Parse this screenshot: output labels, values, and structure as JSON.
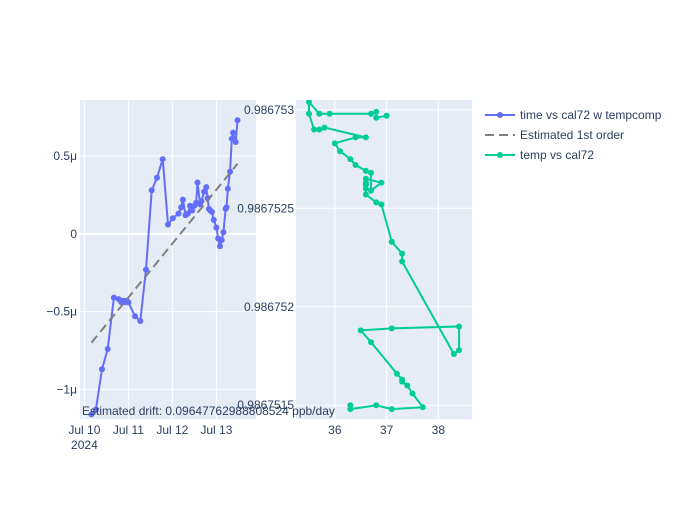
{
  "annotation": "Estimated drift:  0.09647762988808524 ppb/day",
  "colors": {
    "tempcomp": "#636efa",
    "fit": "#7f7f7f",
    "temp": "#00cc96",
    "plot_bg": "#e5ecf6",
    "grid": "#ffffff",
    "text": "#2a3f5f"
  },
  "legend": {
    "placement": "right",
    "items": [
      {
        "label": "time vs cal72 w tempcomp",
        "style": "line-marker",
        "color": "#636efa"
      },
      {
        "label": "Estimated 1st order",
        "style": "dash",
        "color": "#7f7f7f"
      },
      {
        "label": "temp vs cal72",
        "style": "line-marker",
        "color": "#00cc96"
      }
    ]
  },
  "chart_data": [
    {
      "type": "line",
      "x_type": "date",
      "x_ticks": [
        "Jul 10\n2024",
        "Jul 11",
        "Jul 12",
        "Jul 13"
      ],
      "x_tick_values": [
        0,
        1,
        2,
        3
      ],
      "xlim": [
        -0.1,
        3.9
      ],
      "y_ticks": [
        "−1μ",
        "−0.5μ",
        "0",
        "0.5μ"
      ],
      "y_tick_values": [
        -1,
        -0.5,
        0,
        0.5
      ],
      "ylim": [
        -1.19,
        0.86
      ],
      "series": [
        {
          "name": "time vs cal72 w tempcomp",
          "mode": "lines+markers",
          "color": "#636efa",
          "x": [
            0.16,
            0.26,
            0.4,
            0.53,
            0.67,
            0.78,
            0.84,
            0.88,
            0.92,
            0.96,
            1.0,
            1.15,
            1.27,
            1.4,
            1.53,
            1.65,
            1.78,
            1.9,
            2.01,
            2.14,
            2.2,
            2.24,
            2.3,
            2.35,
            2.4,
            2.45,
            2.5,
            2.54,
            2.57,
            2.63,
            2.66,
            2.72,
            2.77,
            2.8,
            2.83,
            2.86,
            2.9,
            2.94,
            3.0,
            3.04,
            3.08,
            3.12,
            3.16,
            3.21,
            3.23,
            3.26,
            3.31,
            3.35,
            3.38,
            3.44,
            3.48
          ],
          "y": [
            -1.16,
            -1.13,
            -0.87,
            -0.74,
            -0.41,
            -0.42,
            -0.44,
            -0.43,
            -0.44,
            -0.43,
            -0.44,
            -0.53,
            -0.56,
            -0.23,
            0.28,
            0.36,
            0.48,
            0.06,
            0.1,
            0.13,
            0.17,
            0.22,
            0.12,
            0.13,
            0.18,
            0.15,
            0.18,
            0.2,
            0.33,
            0.19,
            0.21,
            0.27,
            0.3,
            0.23,
            0.16,
            0.15,
            0.14,
            0.09,
            0.04,
            -0.03,
            -0.08,
            -0.04,
            0.01,
            0.16,
            0.17,
            0.29,
            0.4,
            0.61,
            0.65,
            0.59,
            0.73
          ]
        },
        {
          "name": "Estimated 1st order",
          "mode": "lines",
          "dash": "dash",
          "color": "#7f7f7f",
          "x": [
            0.16,
            3.48
          ],
          "y": [
            -0.7,
            0.45
          ]
        }
      ]
    },
    {
      "type": "scatter",
      "x_ticks": [
        "36",
        "37",
        "38"
      ],
      "x_tick_values": [
        36,
        37,
        38
      ],
      "xlim": [
        35.25,
        38.65
      ],
      "y_ticks": [
        "0.9867515",
        "0.986752",
        "0.9867525",
        "0.986753"
      ],
      "y_tick_values": [
        0.9867515,
        0.986752,
        0.9867525,
        0.986753
      ],
      "ylim": [
        0.98675143,
        0.98675305
      ],
      "series": [
        {
          "name": "temp vs cal72",
          "mode": "lines+markers",
          "color": "#00cc96",
          "x": [
            36.3,
            36.3,
            36.8,
            37.1,
            37.7,
            37.5,
            37.4,
            37.3,
            37.3,
            37.2,
            36.7,
            36.5,
            37.1,
            38.4,
            38.4,
            38.3,
            37.3,
            37.3,
            37.1,
            36.9,
            36.8,
            36.6,
            36.6,
            36.6,
            36.6,
            36.6,
            36.9,
            36.7,
            36.7,
            36.6,
            36.4,
            36.3,
            36.1,
            36.0,
            36.4,
            36.6,
            35.8,
            35.7,
            35.6,
            35.5,
            35.5,
            35.7,
            35.9,
            36.7,
            36.8,
            36.8,
            37.0
          ],
          "y": [
            0.9867515,
            0.98675148,
            0.9867515,
            0.98675148,
            0.98675149,
            0.98675156,
            0.9867516,
            0.98675162,
            0.98675163,
            0.98675166,
            0.98675182,
            0.98675188,
            0.98675189,
            0.9867519,
            0.98675178,
            0.98675176,
            0.98675223,
            0.98675227,
            0.98675233,
            0.98675252,
            0.98675253,
            0.98675257,
            0.9867526,
            0.98675262,
            0.98675263,
            0.98675265,
            0.98675263,
            0.98675259,
            0.98675268,
            0.98675269,
            0.98675272,
            0.98675275,
            0.98675279,
            0.98675283,
            0.98675286,
            0.98675286,
            0.98675291,
            0.9867529,
            0.9867529,
            0.98675298,
            0.98675304,
            0.98675298,
            0.98675298,
            0.98675298,
            0.98675299,
            0.98675296,
            0.98675297
          ]
        }
      ]
    }
  ]
}
